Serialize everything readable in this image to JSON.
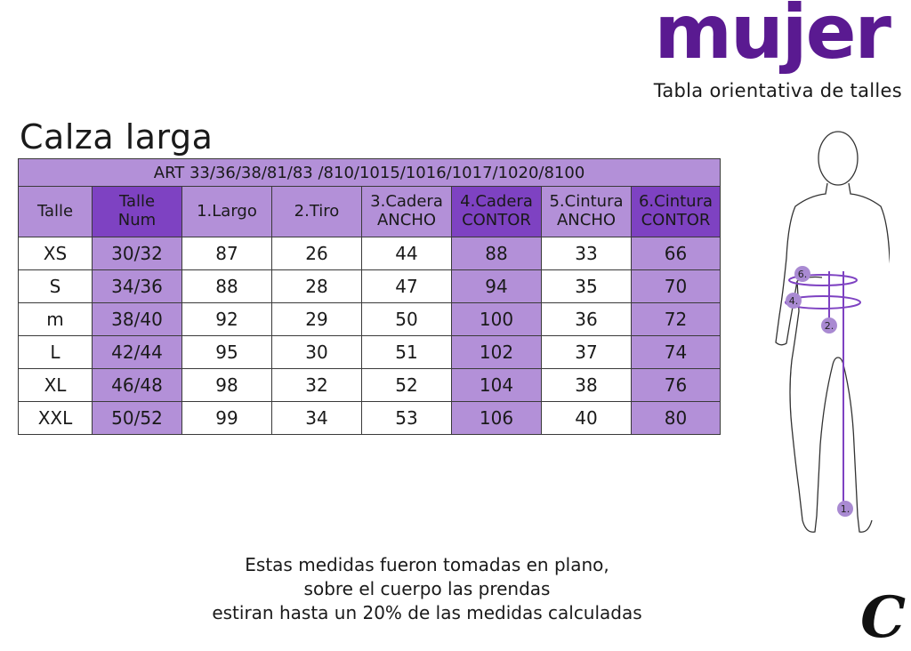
{
  "brand": "mujer",
  "subtitle": "Tabla orientativa de talles",
  "title": "Calza larga",
  "table": {
    "art": "ART 33/36/38/81/83 /810/1015/1016/1017/1020/8100",
    "headers": [
      [
        "Talle",
        ""
      ],
      [
        "Talle",
        "Num"
      ],
      [
        "1.Largo",
        ""
      ],
      [
        "2.Tiro",
        ""
      ],
      [
        "3.Cadera",
        "ANCHO"
      ],
      [
        "4.Cadera",
        "CONTOR"
      ],
      [
        "5.Cintura",
        "ANCHO"
      ],
      [
        "6.Cintura",
        "CONTOR"
      ]
    ],
    "rows": [
      [
        "XS",
        "30/32",
        "87",
        "26",
        "44",
        "88",
        "33",
        "66"
      ],
      [
        "S",
        "34/36",
        "88",
        "28",
        "47",
        "94",
        "35",
        "70"
      ],
      [
        "m",
        "38/40",
        "92",
        "29",
        "50",
        "100",
        "36",
        "72"
      ],
      [
        "L",
        "42/44",
        "95",
        "30",
        "51",
        "102",
        "37",
        "74"
      ],
      [
        "XL",
        "46/48",
        "98",
        "32",
        "52",
        "104",
        "38",
        "76"
      ],
      [
        "XXL",
        "50/52",
        "99",
        "34",
        "53",
        "106",
        "40",
        "80"
      ]
    ]
  },
  "figure_labels": [
    "6.",
    "4.",
    "2.",
    "1."
  ],
  "note": [
    "Estas medidas fueron tomadas en plano,",
    "sobre el cuerpo las prendas",
    "estiran hasta un 20% de las medidas calculadas"
  ],
  "corner_logo": "C",
  "colors": {
    "brand": "#5a1a91",
    "accent_dark": "#7e42c2",
    "accent_light": "#b390d8",
    "figure_marker": "#a98ad2"
  }
}
